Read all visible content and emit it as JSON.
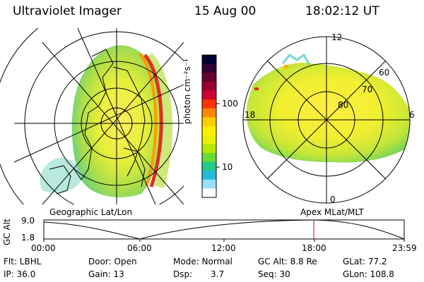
{
  "header": {
    "title": "Ultraviolet Imager",
    "date": "15 Aug 00",
    "time": "18:02:12 UT"
  },
  "left_panel": {
    "caption": "Geographic Lat/Lon"
  },
  "right_panel": {
    "caption": "Apex MLat/MLT",
    "mlt_labels": [
      "12",
      "18",
      "6",
      "0"
    ],
    "lat_labels": [
      "60",
      "70",
      "80"
    ]
  },
  "colorbar": {
    "label": "photon cm⁻²s⁻¹",
    "ticks": [
      "100",
      "10"
    ],
    "colors": [
      "#000033",
      "#330033",
      "#660033",
      "#990033",
      "#cc0033",
      "#ff3300",
      "#ff8800",
      "#ffcc00",
      "#ffee00",
      "#e8f000",
      "#b8e800",
      "#66dd33",
      "#22cc88",
      "#22bbdd",
      "#99ddff",
      "#ffffff"
    ]
  },
  "altitude_chart": {
    "ylabel": "GC Alt",
    "ytick_top": "9.0",
    "ytick_bottom": "1.8",
    "xticks": [
      "00:00",
      "06:00",
      "12:00",
      "18:00",
      "23:59"
    ],
    "marker_time": "18:02",
    "marker_color": "#cc0000"
  },
  "status": {
    "row1": [
      "Flt: LBHL",
      "Door: Open",
      "Mode: Normal",
      "GC Alt: 8.8 Re",
      "GLat: 77.2"
    ],
    "row2": [
      "IP: 36.0",
      "Gain: 13",
      "Dsp:",
      "3.7",
      "Seq: 30",
      "GLon: 108.8"
    ]
  }
}
